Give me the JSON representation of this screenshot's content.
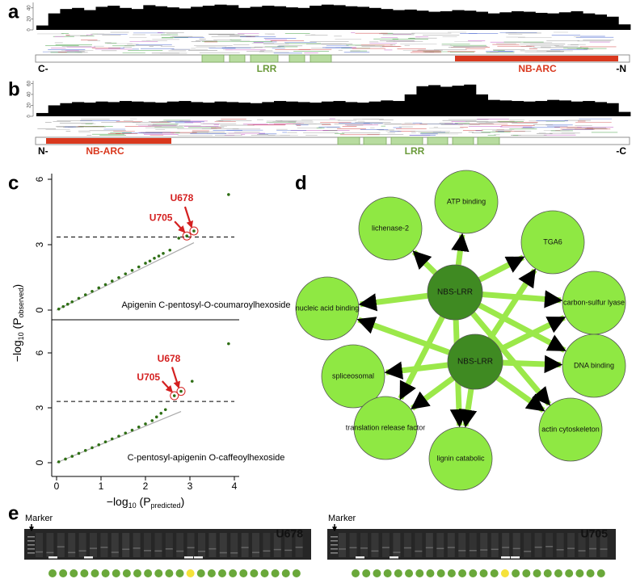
{
  "panels": {
    "a": {
      "label": "a",
      "ylim": [
        0,
        50
      ],
      "yticks": [
        0,
        20,
        40
      ],
      "coverage": [
        8,
        30,
        38,
        40,
        36,
        42,
        44,
        40,
        38,
        45,
        43,
        41,
        39,
        42,
        44,
        46,
        45,
        40,
        42,
        44,
        43,
        41,
        40,
        44,
        46,
        45,
        43,
        42,
        40,
        38,
        36,
        37,
        35,
        33,
        34,
        36,
        35,
        33,
        30,
        32,
        34,
        33,
        31,
        30,
        32,
        34,
        30,
        28,
        24,
        10
      ],
      "left_end": "C-",
      "right_end": "-N",
      "domain_1": "LRR",
      "domain_2": "NB-ARC"
    },
    "b": {
      "label": "b",
      "ylim": [
        0,
        65
      ],
      "yticks": [
        0,
        20,
        40,
        60
      ],
      "coverage": [
        6,
        20,
        24,
        26,
        25,
        27,
        26,
        28,
        27,
        26,
        25,
        27,
        28,
        26,
        25,
        27,
        26,
        25,
        24,
        26,
        28,
        27,
        26,
        25,
        27,
        28,
        26,
        25,
        27,
        29,
        28,
        40,
        55,
        57,
        54,
        56,
        58,
        40,
        30,
        29,
        28,
        27,
        28,
        30,
        29,
        27,
        28,
        26,
        24,
        8
      ],
      "left_end": "N-",
      "right_end": "-C",
      "domain_1": "NB-ARC",
      "domain_2": "LRR"
    },
    "c": {
      "label": "c",
      "xlim": [
        0,
        4
      ],
      "xticks": [
        0,
        1,
        2,
        3,
        4
      ],
      "ylim": [
        0,
        6
      ],
      "yticks": [
        0,
        3,
        6
      ],
      "ylabel": [
        "−log",
        "10",
        " (P",
        "observed",
        ")"
      ],
      "xlabel": [
        "−log",
        "10",
        " (P",
        "predicted",
        ")"
      ],
      "point_color": "#2e6e14",
      "threshold": 3.35,
      "plots": [
        {
          "caption": "Apigenin C-pentosyl-O-coumaroylhexoside",
          "x": [
            0.05,
            0.15,
            0.25,
            0.35,
            0.5,
            0.65,
            0.8,
            0.95,
            1.1,
            1.25,
            1.4,
            1.55,
            1.7,
            1.85,
            2.0,
            2.1,
            2.2,
            2.3,
            2.4,
            2.55,
            2.75,
            2.93,
            3.09,
            3.87
          ],
          "y": [
            0.05,
            0.16,
            0.27,
            0.38,
            0.54,
            0.7,
            0.86,
            1.02,
            1.17,
            1.33,
            1.49,
            1.66,
            1.82,
            1.98,
            2.15,
            2.25,
            2.38,
            2.48,
            2.6,
            2.75,
            3.3,
            3.4,
            3.63,
            5.3
          ],
          "annotations": [
            {
              "text": "U705",
              "index": 21
            },
            {
              "text": "U678",
              "index": 22
            }
          ]
        },
        {
          "caption": "C-pentosyl-apigenin O-caffeoylhexoside",
          "x": [
            0.05,
            0.2,
            0.35,
            0.5,
            0.65,
            0.8,
            0.95,
            1.1,
            1.25,
            1.4,
            1.55,
            1.7,
            1.85,
            2.0,
            2.15,
            2.25,
            2.35,
            2.45,
            2.65,
            2.8,
            3.05,
            3.87
          ],
          "y": [
            0.05,
            0.2,
            0.35,
            0.51,
            0.67,
            0.82,
            0.98,
            1.14,
            1.3,
            1.45,
            1.62,
            1.78,
            1.95,
            2.12,
            2.3,
            2.5,
            2.7,
            2.9,
            3.66,
            3.9,
            4.45,
            6.5
          ],
          "annotations": [
            {
              "text": "U705",
              "index": 18
            },
            {
              "text": "U678",
              "index": 19
            }
          ]
        }
      ]
    },
    "d": {
      "label": "d",
      "edge_color": "#9be84a",
      "nodes": [
        {
          "label": "NBS-LRR",
          "color": "#3f8a22"
        },
        {
          "label": "NBS-LRR",
          "color": "#3f8a22"
        },
        {
          "label": "ATP binding",
          "color": "#8fe843"
        },
        {
          "label": "lichenase-2",
          "color": "#8fe843"
        },
        {
          "label": "TGA6",
          "color": "#8fe843"
        },
        {
          "label": "nucleic acid binding",
          "color": "#8fe843"
        },
        {
          "label": "carbon-sulfur lyase",
          "color": "#8fe843"
        },
        {
          "label": "spliceosomal",
          "color": "#8fe843"
        },
        {
          "label": "DNA binding",
          "color": "#8fe843"
        },
        {
          "label": "translation release factor",
          "color": "#8fe843"
        },
        {
          "label": "actin cytoskeleton",
          "color": "#8fe843"
        },
        {
          "label": "lignin catabolic",
          "color": "#8fe843"
        }
      ],
      "edges": [
        [
          0,
          2
        ],
        [
          0,
          3
        ],
        [
          0,
          4
        ],
        [
          0,
          5
        ],
        [
          0,
          6
        ],
        [
          0,
          8
        ],
        [
          0,
          9
        ],
        [
          0,
          10
        ],
        [
          0,
          11
        ],
        [
          1,
          4
        ],
        [
          1,
          5
        ],
        [
          1,
          6
        ],
        [
          1,
          7
        ],
        [
          1,
          8
        ],
        [
          1,
          9
        ],
        [
          1,
          10
        ],
        [
          1,
          11
        ]
      ]
    },
    "e": {
      "label": "e",
      "gels": [
        {
          "marker": "Marker",
          "title": "U678",
          "dots": [
            "#6aa83a",
            "#6aa83a",
            "#6aa83a",
            "#6aa83a",
            "#6aa83a",
            "#6aa83a",
            "#6aa83a",
            "#6aa83a",
            "#6aa83a",
            "#6aa83a",
            "#6aa83a",
            "#6aa83a",
            "#6aa83a",
            "#f5e23a",
            "#6aa83a",
            "#6aa83a",
            "#6aa83a",
            "#6aa83a",
            "#6aa83a",
            "#6aa83a",
            "#6aa83a",
            "#6aa83a",
            "#6aa83a",
            "#6aa83a"
          ]
        },
        {
          "marker": "Marker",
          "title": "U705",
          "dots": [
            "#6aa83a",
            "#6aa83a",
            "#6aa83a",
            "#6aa83a",
            "#6aa83a",
            "#6aa83a",
            "#6aa83a",
            "#6aa83a",
            "#6aa83a",
            "#6aa83a",
            "#6aa83a",
            "#6aa83a",
            "#6aa83a",
            "#6aa83a",
            "#f5e23a",
            "#6aa83a",
            "#6aa83a",
            "#6aa83a",
            "#6aa83a",
            "#6aa83a",
            "#6aa83a",
            "#6aa83a",
            "#6aa83a",
            "#6aa83a"
          ]
        }
      ]
    }
  }
}
